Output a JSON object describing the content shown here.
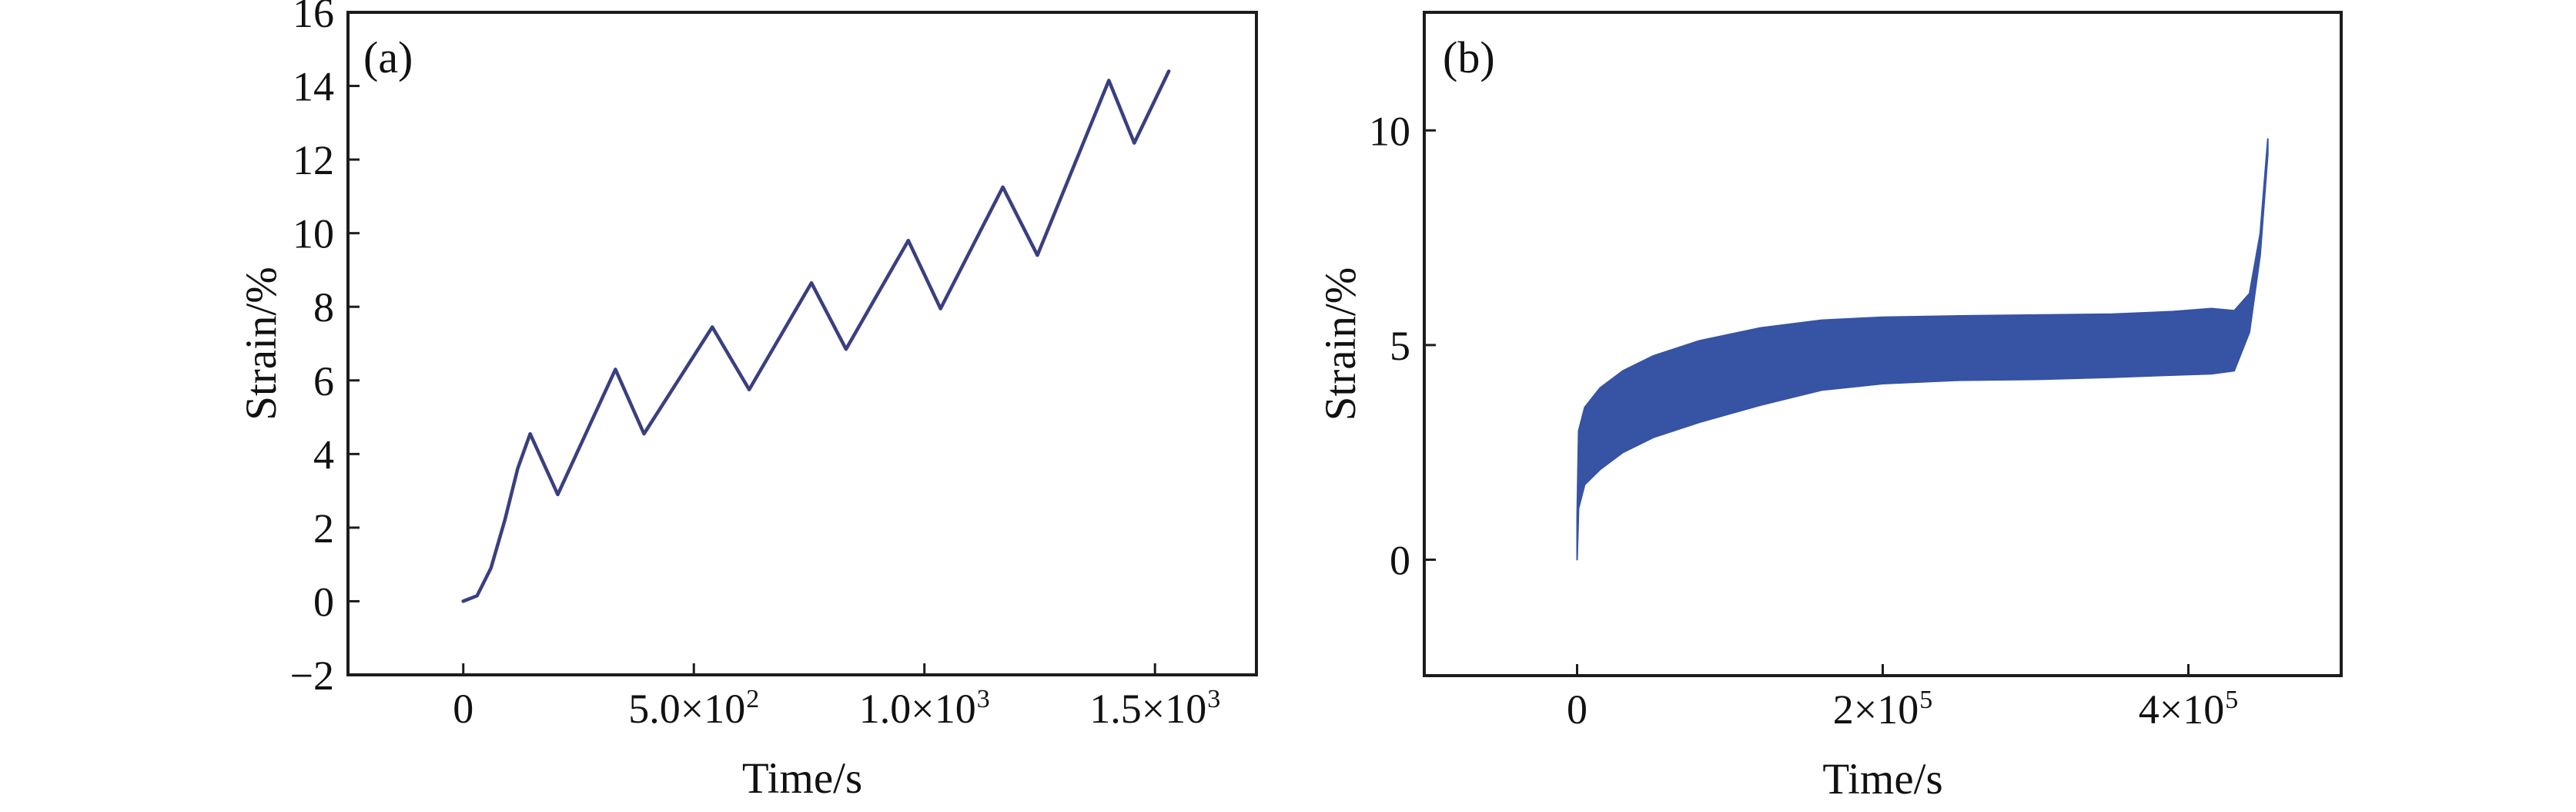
{
  "figure": {
    "background": "#ffffff",
    "text_color": "#111111",
    "axis_color": "#1c1c1c"
  },
  "chart_data": [
    {
      "id": "a",
      "panel_label": "(a)",
      "type": "line",
      "xlabel": "Time/s",
      "ylabel": "Strain/%",
      "x_range": [
        -250,
        1720
      ],
      "y_range": [
        -2,
        16
      ],
      "grid": "off",
      "x_ticks": [
        {
          "v": 0,
          "base": "0"
        },
        {
          "v": 500,
          "base": "5.0×10",
          "sup": "2"
        },
        {
          "v": 1000,
          "base": "1.0×10",
          "sup": "3"
        },
        {
          "v": 1500,
          "base": "1.5×10",
          "sup": "3"
        }
      ],
      "y_ticks": [
        {
          "v": -2,
          "base": "−2"
        },
        {
          "v": 0,
          "base": "0"
        },
        {
          "v": 2,
          "base": "2"
        },
        {
          "v": 4,
          "base": "4"
        },
        {
          "v": 6,
          "base": "6"
        },
        {
          "v": 8,
          "base": "8"
        },
        {
          "v": 10,
          "base": "10"
        },
        {
          "v": 12,
          "base": "12"
        },
        {
          "v": 14,
          "base": "14"
        },
        {
          "v": 16,
          "base": "16"
        }
      ],
      "line_color": "#3a3f80",
      "line_width": 4.5,
      "points": [
        [
          0,
          0.0
        ],
        [
          30,
          0.15
        ],
        [
          60,
          0.9
        ],
        [
          90,
          2.2
        ],
        [
          118,
          3.6
        ],
        [
          145,
          4.55
        ],
        [
          205,
          2.9
        ],
        [
          330,
          6.3
        ],
        [
          392,
          4.55
        ],
        [
          540,
          7.45
        ],
        [
          620,
          5.75
        ],
        [
          755,
          8.65
        ],
        [
          830,
          6.85
        ],
        [
          965,
          9.8
        ],
        [
          1035,
          7.95
        ],
        [
          1170,
          11.25
        ],
        [
          1245,
          9.4
        ],
        [
          1400,
          14.15
        ],
        [
          1455,
          12.45
        ],
        [
          1530,
          14.4
        ]
      ]
    },
    {
      "id": "b",
      "panel_label": "(b)",
      "type": "band",
      "xlabel": "Time/s",
      "ylabel": "Strain/%",
      "x_range": [
        -100000,
        500000
      ],
      "y_range": [
        -2.7,
        12.75
      ],
      "grid": "off",
      "x_ticks": [
        {
          "v": 0,
          "base": "0"
        },
        {
          "v": 200000,
          "base": "2×10",
          "sup": "5"
        },
        {
          "v": 400000,
          "base": "4×10",
          "sup": "5"
        }
      ],
      "y_ticks": [
        {
          "v": 0,
          "base": "0"
        },
        {
          "v": 5,
          "base": "5"
        },
        {
          "v": 10,
          "base": "10"
        }
      ],
      "band_color": "#3653a4",
      "upper": [
        [
          0,
          1.0
        ],
        [
          1000,
          3.0
        ],
        [
          5000,
          3.55
        ],
        [
          15000,
          4.0
        ],
        [
          30000,
          4.4
        ],
        [
          50000,
          4.75
        ],
        [
          80000,
          5.1
        ],
        [
          120000,
          5.4
        ],
        [
          160000,
          5.58
        ],
        [
          200000,
          5.65
        ],
        [
          250000,
          5.68
        ],
        [
          300000,
          5.7
        ],
        [
          350000,
          5.72
        ],
        [
          390000,
          5.78
        ],
        [
          415000,
          5.85
        ],
        [
          430000,
          5.8
        ],
        [
          440000,
          6.2
        ],
        [
          447000,
          7.6
        ],
        [
          452000,
          9.8
        ]
      ],
      "lower": [
        [
          0,
          0.0
        ],
        [
          1000,
          1.2
        ],
        [
          5000,
          1.75
        ],
        [
          15000,
          2.1
        ],
        [
          30000,
          2.5
        ],
        [
          50000,
          2.85
        ],
        [
          80000,
          3.2
        ],
        [
          120000,
          3.6
        ],
        [
          160000,
          3.95
        ],
        [
          200000,
          4.1
        ],
        [
          250000,
          4.18
        ],
        [
          300000,
          4.2
        ],
        [
          350000,
          4.25
        ],
        [
          390000,
          4.3
        ],
        [
          415000,
          4.33
        ],
        [
          430000,
          4.4
        ],
        [
          440000,
          5.3
        ],
        [
          447000,
          7.1
        ],
        [
          452000,
          9.45
        ]
      ]
    }
  ]
}
